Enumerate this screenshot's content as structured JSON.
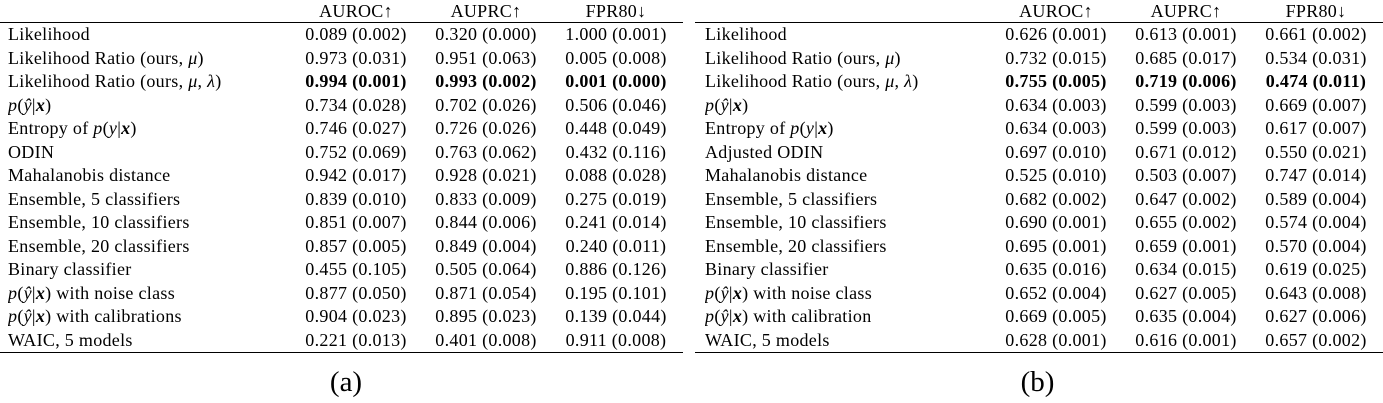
{
  "colors": {
    "text": "#000000",
    "background": "#ffffff"
  },
  "tables": [
    {
      "id": "a",
      "caption": "(a)",
      "columns": [
        "AUROC↑",
        "AUPRC↑",
        "FPR80↓"
      ],
      "rows": [
        {
          "label": [
            [
              "Likelihood",
              "n"
            ]
          ],
          "bold": false,
          "values": [
            "0.089 (0.002)",
            "0.320 (0.000)",
            "1.000 (0.001)"
          ]
        },
        {
          "label": [
            [
              "Likelihood Ratio (ours, ",
              "n"
            ],
            [
              "μ",
              "i"
            ],
            [
              ")",
              "n"
            ]
          ],
          "bold": false,
          "values": [
            "0.973 (0.031)",
            "0.951 (0.063)",
            "0.005 (0.008)"
          ]
        },
        {
          "label": [
            [
              "Likelihood Ratio (ours, ",
              "n"
            ],
            [
              "μ",
              "i"
            ],
            [
              ", ",
              "n"
            ],
            [
              "λ",
              "i"
            ],
            [
              ")",
              "n"
            ]
          ],
          "bold": true,
          "values": [
            "0.994 (0.001)",
            "0.993 (0.002)",
            "0.001 (0.000)"
          ]
        },
        {
          "label": [
            [
              "p",
              "i"
            ],
            [
              "(",
              "n"
            ],
            [
              "ŷ",
              "i"
            ],
            [
              "|",
              "n"
            ],
            [
              "x",
              "bi"
            ],
            [
              ")",
              "n"
            ]
          ],
          "bold": false,
          "values": [
            "0.734 (0.028)",
            "0.702 (0.026)",
            "0.506 (0.046)"
          ]
        },
        {
          "label": [
            [
              "Entropy of ",
              "n"
            ],
            [
              "p",
              "i"
            ],
            [
              "(",
              "n"
            ],
            [
              "y",
              "i"
            ],
            [
              "|",
              "n"
            ],
            [
              "x",
              "bi"
            ],
            [
              ")",
              "n"
            ]
          ],
          "bold": false,
          "values": [
            "0.746 (0.027)",
            "0.726 (0.026)",
            "0.448 (0.049)"
          ]
        },
        {
          "label": [
            [
              "ODIN",
              "n"
            ]
          ],
          "bold": false,
          "values": [
            "0.752 (0.069)",
            "0.763 (0.062)",
            "0.432 (0.116)"
          ]
        },
        {
          "label": [
            [
              "Mahalanobis distance",
              "n"
            ]
          ],
          "bold": false,
          "values": [
            "0.942 (0.017)",
            "0.928 (0.021)",
            "0.088 (0.028)"
          ]
        },
        {
          "label": [
            [
              "Ensemble, 5 classifiers",
              "n"
            ]
          ],
          "bold": false,
          "values": [
            "0.839 (0.010)",
            "0.833 (0.009)",
            "0.275 (0.019)"
          ]
        },
        {
          "label": [
            [
              "Ensemble, 10 classifiers",
              "n"
            ]
          ],
          "bold": false,
          "values": [
            "0.851 (0.007)",
            "0.844 (0.006)",
            "0.241 (0.014)"
          ]
        },
        {
          "label": [
            [
              "Ensemble, 20 classifiers",
              "n"
            ]
          ],
          "bold": false,
          "values": [
            "0.857 (0.005)",
            "0.849 (0.004)",
            "0.240 (0.011)"
          ]
        },
        {
          "label": [
            [
              "Binary classifier",
              "n"
            ]
          ],
          "bold": false,
          "values": [
            "0.455 (0.105)",
            "0.505 (0.064)",
            "0.886 (0.126)"
          ]
        },
        {
          "label": [
            [
              "p",
              "i"
            ],
            [
              "(",
              "n"
            ],
            [
              "ŷ",
              "i"
            ],
            [
              "|",
              "n"
            ],
            [
              "x",
              "bi"
            ],
            [
              ")",
              "n"
            ],
            [
              " with noise class",
              "n"
            ]
          ],
          "bold": false,
          "values": [
            "0.877 (0.050)",
            "0.871 (0.054)",
            "0.195 (0.101)"
          ]
        },
        {
          "label": [
            [
              "p",
              "i"
            ],
            [
              "(",
              "n"
            ],
            [
              "ŷ",
              "i"
            ],
            [
              "|",
              "n"
            ],
            [
              "x",
              "bi"
            ],
            [
              ")",
              "n"
            ],
            [
              " with calibrations",
              "n"
            ]
          ],
          "bold": false,
          "values": [
            "0.904 (0.023)",
            "0.895 (0.023)",
            "0.139 (0.044)"
          ]
        },
        {
          "label": [
            [
              "WAIC, 5 models",
              "n"
            ]
          ],
          "bold": false,
          "values": [
            "0.221 (0.013)",
            "0.401 (0.008)",
            "0.911 (0.008)"
          ]
        }
      ]
    },
    {
      "id": "b",
      "caption": "(b)",
      "columns": [
        "AUROC↑",
        "AUPRC↑",
        "FPR80↓"
      ],
      "rows": [
        {
          "label": [
            [
              "Likelihood",
              "n"
            ]
          ],
          "bold": false,
          "values": [
            "0.626 (0.001)",
            "0.613 (0.001)",
            "0.661 (0.002)"
          ]
        },
        {
          "label": [
            [
              "Likelihood Ratio (ours, ",
              "n"
            ],
            [
              "μ",
              "i"
            ],
            [
              ")",
              "n"
            ]
          ],
          "bold": false,
          "values": [
            "0.732 (0.015)",
            "0.685 (0.017)",
            "0.534 (0.031)"
          ]
        },
        {
          "label": [
            [
              "Likelihood Ratio (ours, ",
              "n"
            ],
            [
              "μ",
              "i"
            ],
            [
              ", ",
              "n"
            ],
            [
              "λ",
              "i"
            ],
            [
              ")",
              "n"
            ]
          ],
          "bold": true,
          "values": [
            "0.755 (0.005)",
            "0.719 (0.006)",
            "0.474 (0.011)"
          ]
        },
        {
          "label": [
            [
              "p",
              "i"
            ],
            [
              "(",
              "n"
            ],
            [
              "ŷ",
              "i"
            ],
            [
              "|",
              "n"
            ],
            [
              "x",
              "bi"
            ],
            [
              ")",
              "n"
            ]
          ],
          "bold": false,
          "values": [
            "0.634 (0.003)",
            "0.599 (0.003)",
            "0.669 (0.007)"
          ]
        },
        {
          "label": [
            [
              "Entropy of ",
              "n"
            ],
            [
              "p",
              "i"
            ],
            [
              "(",
              "n"
            ],
            [
              "y",
              "i"
            ],
            [
              "|",
              "n"
            ],
            [
              "x",
              "bi"
            ],
            [
              ")",
              "n"
            ]
          ],
          "bold": false,
          "values": [
            "0.634 (0.003)",
            "0.599 (0.003)",
            "0.617 (0.007)"
          ]
        },
        {
          "label": [
            [
              "Adjusted ODIN",
              "n"
            ]
          ],
          "bold": false,
          "values": [
            "0.697 (0.010)",
            "0.671 (0.012)",
            "0.550 (0.021)"
          ]
        },
        {
          "label": [
            [
              "Mahalanobis distance",
              "n"
            ]
          ],
          "bold": false,
          "values": [
            "0.525 (0.010)",
            "0.503 (0.007)",
            "0.747 (0.014)"
          ]
        },
        {
          "label": [
            [
              "Ensemble, 5 classifiers",
              "n"
            ]
          ],
          "bold": false,
          "values": [
            "0.682 (0.002)",
            "0.647 (0.002)",
            "0.589 (0.004)"
          ]
        },
        {
          "label": [
            [
              "Ensemble, 10 classifiers",
              "n"
            ]
          ],
          "bold": false,
          "values": [
            "0.690 (0.001)",
            "0.655 (0.002)",
            "0.574 (0.004)"
          ]
        },
        {
          "label": [
            [
              "Ensemble, 20 classifiers",
              "n"
            ]
          ],
          "bold": false,
          "values": [
            "0.695 (0.001)",
            "0.659 (0.001)",
            "0.570 (0.004)"
          ]
        },
        {
          "label": [
            [
              "Binary classifier",
              "n"
            ]
          ],
          "bold": false,
          "values": [
            "0.635 (0.016)",
            "0.634 (0.015)",
            "0.619 (0.025)"
          ]
        },
        {
          "label": [
            [
              "p",
              "i"
            ],
            [
              "(",
              "n"
            ],
            [
              "ŷ",
              "i"
            ],
            [
              "|",
              "n"
            ],
            [
              "x",
              "bi"
            ],
            [
              ")",
              "n"
            ],
            [
              " with noise class",
              "n"
            ]
          ],
          "bold": false,
          "values": [
            "0.652 (0.004)",
            "0.627 (0.005)",
            "0.643 (0.008)"
          ]
        },
        {
          "label": [
            [
              "p",
              "i"
            ],
            [
              "(",
              "n"
            ],
            [
              "ŷ",
              "i"
            ],
            [
              "|",
              "n"
            ],
            [
              "x",
              "bi"
            ],
            [
              ")",
              "n"
            ],
            [
              " with calibration",
              "n"
            ]
          ],
          "bold": false,
          "values": [
            "0.669 (0.005)",
            "0.635 (0.004)",
            "0.627 (0.006)"
          ]
        },
        {
          "label": [
            [
              "WAIC, 5 models",
              "n"
            ]
          ],
          "bold": false,
          "values": [
            "0.628 (0.001)",
            "0.616 (0.001)",
            "0.657 (0.002)"
          ]
        }
      ]
    }
  ]
}
